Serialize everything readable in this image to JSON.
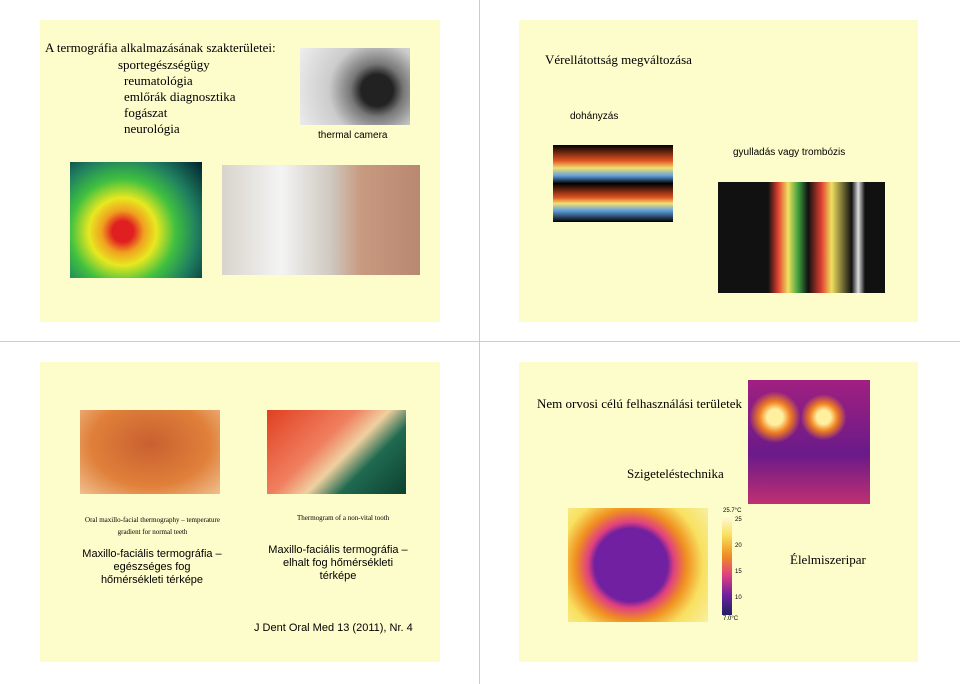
{
  "slides": [
    {
      "title": "A termográfia alkalmazásának szakterületei:",
      "items": [
        "sportegészségügy",
        "reumatológia",
        "emlőrák diagnosztika",
        "fogászat",
        "neurológia"
      ],
      "caption": "thermal camera"
    },
    {
      "title": "Vérellátottság megváltozása",
      "label_left": "dohányzás",
      "label_right": "gyulladás vagy trombózis"
    },
    {
      "small_captions": [
        "Oral maxillo-facial thermography – temperature gradient for normal teeth",
        "Thermogram of a non-vital tooth"
      ],
      "captions": [
        "Maxillo-faciális termográfia – egészséges fog hőmérsékleti térképe",
        "Maxillo-faciális termográfia – elhalt fog hőmérsékleti térképe"
      ],
      "citation": "J Dent Oral Med 13 (2011), Nr. 4"
    },
    {
      "title": "Nem orvosi célú felhasználási területek",
      "label_building": "Szigeteléstechnika",
      "label_food": "Élelmiszeripar",
      "scale_labels": [
        "25.7°C",
        "25",
        "20",
        "15",
        "10",
        "7.0°C"
      ]
    }
  ]
}
